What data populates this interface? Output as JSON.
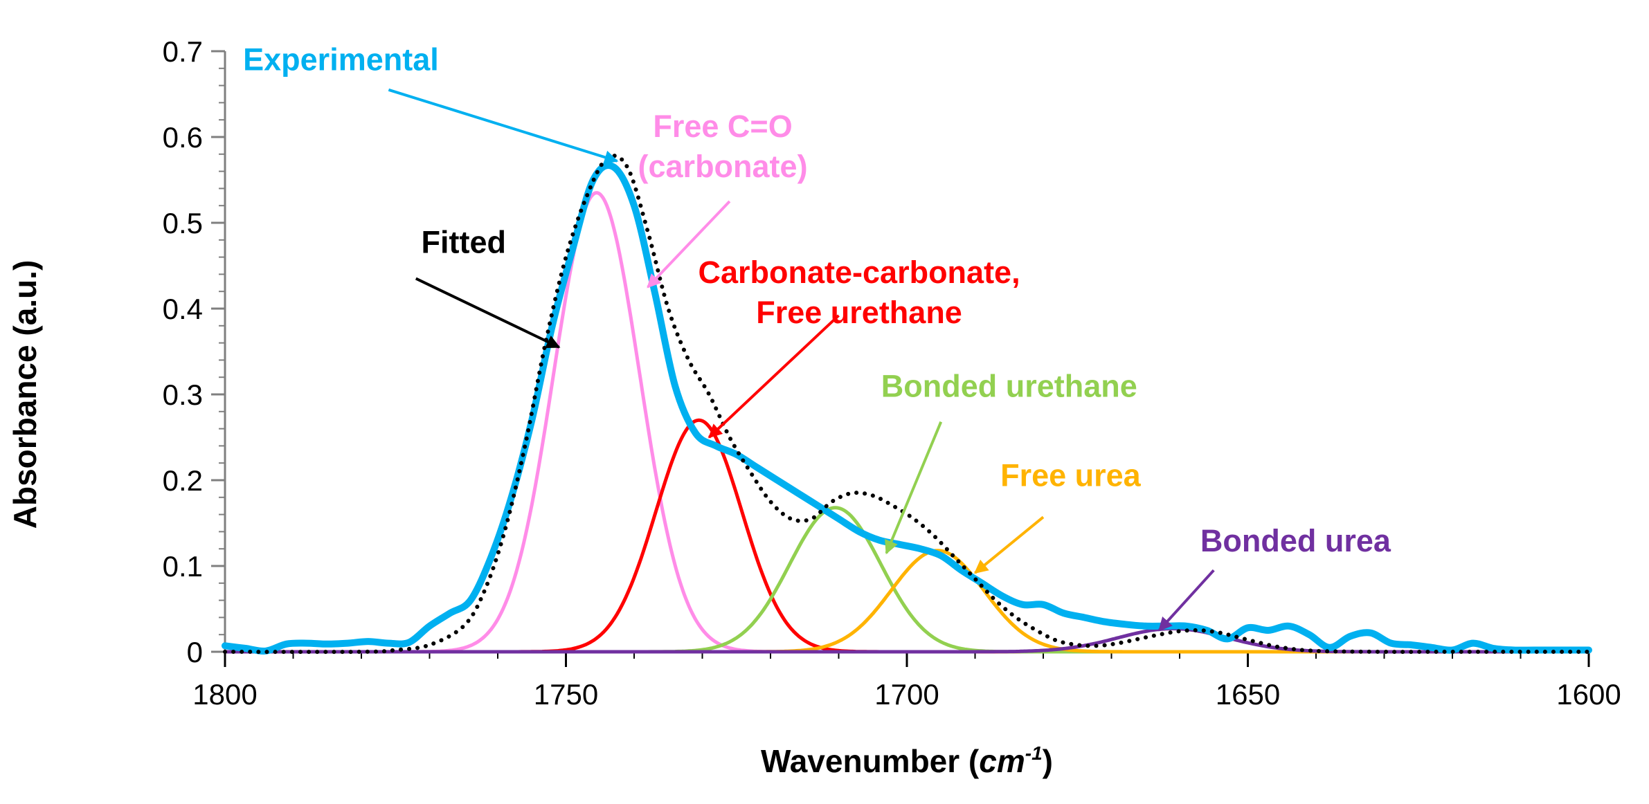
{
  "chart_data": {
    "type": "line",
    "title": "",
    "xlabel": "Wavenumber",
    "xlabel_unit": "cm",
    "xlabel_unit_sup": "-1",
    "ylabel": "Absorbance (a.u.)",
    "xlim": [
      1800,
      1600
    ],
    "ylim": [
      0,
      0.7
    ],
    "x_reversed": true,
    "x_ticks": [
      1800,
      1750,
      1700,
      1650,
      1600
    ],
    "y_ticks": [
      0,
      0.1,
      0.2,
      0.3,
      0.4,
      0.5,
      0.6,
      0.7
    ],
    "x_tick_labels": [
      "1800",
      "1750",
      "1700",
      "1650",
      "1600"
    ],
    "y_tick_labels": [
      "0",
      "0.1",
      "0.2",
      "0.3",
      "0.4",
      "0.5",
      "0.6",
      "0.7"
    ],
    "grid": false,
    "series": [
      {
        "name": "Experimental",
        "color": "#00B0F0",
        "style": "solid-thick",
        "x": [
          1800,
          1797,
          1794,
          1791,
          1788,
          1785,
          1782,
          1779,
          1776,
          1773,
          1770,
          1767,
          1764,
          1761,
          1758,
          1755,
          1752,
          1749,
          1746,
          1743,
          1740,
          1737,
          1734,
          1731,
          1728,
          1725,
          1722,
          1719,
          1716,
          1713,
          1710,
          1707,
          1704,
          1701,
          1698,
          1695,
          1692,
          1689,
          1686,
          1683,
          1680,
          1677,
          1674,
          1671,
          1668,
          1665,
          1662,
          1659,
          1656,
          1653,
          1650,
          1647,
          1644,
          1641,
          1638,
          1635,
          1632,
          1629,
          1626,
          1623,
          1620,
          1617,
          1614,
          1611,
          1608,
          1605,
          1602,
          1600
        ],
        "y": [
          0.007,
          0.004,
          0.001,
          0.009,
          0.01,
          0.009,
          0.01,
          0.012,
          0.01,
          0.011,
          0.03,
          0.045,
          0.06,
          0.11,
          0.18,
          0.27,
          0.38,
          0.47,
          0.55,
          0.565,
          0.52,
          0.42,
          0.31,
          0.255,
          0.24,
          0.23,
          0.215,
          0.2,
          0.185,
          0.17,
          0.155,
          0.14,
          0.13,
          0.125,
          0.12,
          0.112,
          0.095,
          0.08,
          0.065,
          0.055,
          0.055,
          0.045,
          0.04,
          0.035,
          0.032,
          0.03,
          0.03,
          0.03,
          0.025,
          0.015,
          0.028,
          0.025,
          0.03,
          0.02,
          0.005,
          0.018,
          0.022,
          0.01,
          0.008,
          0.005,
          0.002,
          0.01,
          0.004,
          0.002,
          0.002,
          0.002,
          0.002,
          0.002
        ]
      },
      {
        "name": "Fitted",
        "color": "#000000",
        "style": "dotted",
        "x": [
          1800,
          1780,
          1775,
          1770,
          1765,
          1762,
          1759,
          1756,
          1753,
          1750,
          1747,
          1744,
          1741,
          1738,
          1735,
          1732,
          1729,
          1726,
          1723,
          1720,
          1717,
          1714,
          1711,
          1708,
          1705,
          1702,
          1699,
          1696,
          1693,
          1690,
          1687,
          1684,
          1681,
          1678,
          1675,
          1672,
          1669,
          1666,
          1663,
          1660,
          1657,
          1654,
          1651,
          1648,
          1645,
          1640,
          1630,
          1620,
          1600
        ],
        "y": [
          0,
          0,
          0.002,
          0.008,
          0.03,
          0.07,
          0.14,
          0.24,
          0.36,
          0.46,
          0.53,
          0.575,
          0.565,
          0.49,
          0.4,
          0.34,
          0.3,
          0.25,
          0.21,
          0.175,
          0.155,
          0.155,
          0.175,
          0.185,
          0.182,
          0.17,
          0.155,
          0.135,
          0.11,
          0.085,
          0.06,
          0.04,
          0.025,
          0.013,
          0.008,
          0.007,
          0.01,
          0.015,
          0.02,
          0.024,
          0.025,
          0.022,
          0.016,
          0.01,
          0.005,
          0.001,
          0,
          0,
          0
        ]
      },
      {
        "name": "Free C=O (carbonate)",
        "color": "#FF8CE8",
        "style": "gaussian",
        "center": 1745.5,
        "height": 0.535,
        "sigma": 6.3
      },
      {
        "name": "Carbonate-carbonate, Free urethane",
        "color": "#FF0000",
        "style": "gaussian",
        "center": 1730.5,
        "height": 0.27,
        "sigma": 6.3
      },
      {
        "name": "Bonded urethane",
        "color": "#92D050",
        "style": "gaussian",
        "center": 1710.5,
        "height": 0.168,
        "sigma": 6.7
      },
      {
        "name": "Free urea",
        "color": "#FFB300",
        "style": "gaussian",
        "center": 1695.5,
        "height": 0.118,
        "sigma": 6.8
      },
      {
        "name": "Bonded urea",
        "color": "#7030A0",
        "style": "gaussian",
        "center": 1661,
        "height": 0.027,
        "sigma": 8
      }
    ],
    "annotations": [
      {
        "lines": [
          "Experimental"
        ],
        "color": "#00B0F0",
        "text_x": 1783,
        "text_y": 0.678,
        "arrow_from": [
          1776,
          0.655
        ],
        "arrow_to": [
          1742.5,
          0.572
        ]
      },
      {
        "lines": [
          "Free C=O",
          "(carbonate)"
        ],
        "color": "#FF8CE8",
        "text_x": 1727,
        "text_y": 0.6,
        "arrow_from": [
          1726,
          0.525
        ],
        "arrow_to": [
          1738,
          0.425
        ]
      },
      {
        "lines": [
          "Fitted"
        ],
        "color": "#000000",
        "text_x": 1765,
        "text_y": 0.465,
        "arrow_from": [
          1772,
          0.435
        ],
        "arrow_to": [
          1751,
          0.355
        ]
      },
      {
        "lines": [
          "Carbonate-carbonate,",
          "Free urethane"
        ],
        "color": "#FF0000",
        "text_x": 1707,
        "text_y": 0.43,
        "arrow_from": [
          1710,
          0.392
        ],
        "arrow_to": [
          1729,
          0.25
        ]
      },
      {
        "lines": [
          "Bonded urethane"
        ],
        "color": "#92D050",
        "text_x": 1685,
        "text_y": 0.297,
        "arrow_from": [
          1695,
          0.268
        ],
        "arrow_to": [
          1703,
          0.115
        ]
      },
      {
        "lines": [
          "Free urea"
        ],
        "color": "#FFB300",
        "text_x": 1676,
        "text_y": 0.193,
        "arrow_from": [
          1680,
          0.157
        ],
        "arrow_to": [
          1690,
          0.092
        ]
      },
      {
        "lines": [
          "Bonded urea"
        ],
        "color": "#7030A0",
        "text_x": 1643,
        "text_y": 0.117,
        "arrow_from": [
          1655,
          0.095
        ],
        "arrow_to": [
          1663,
          0.025
        ]
      }
    ]
  }
}
